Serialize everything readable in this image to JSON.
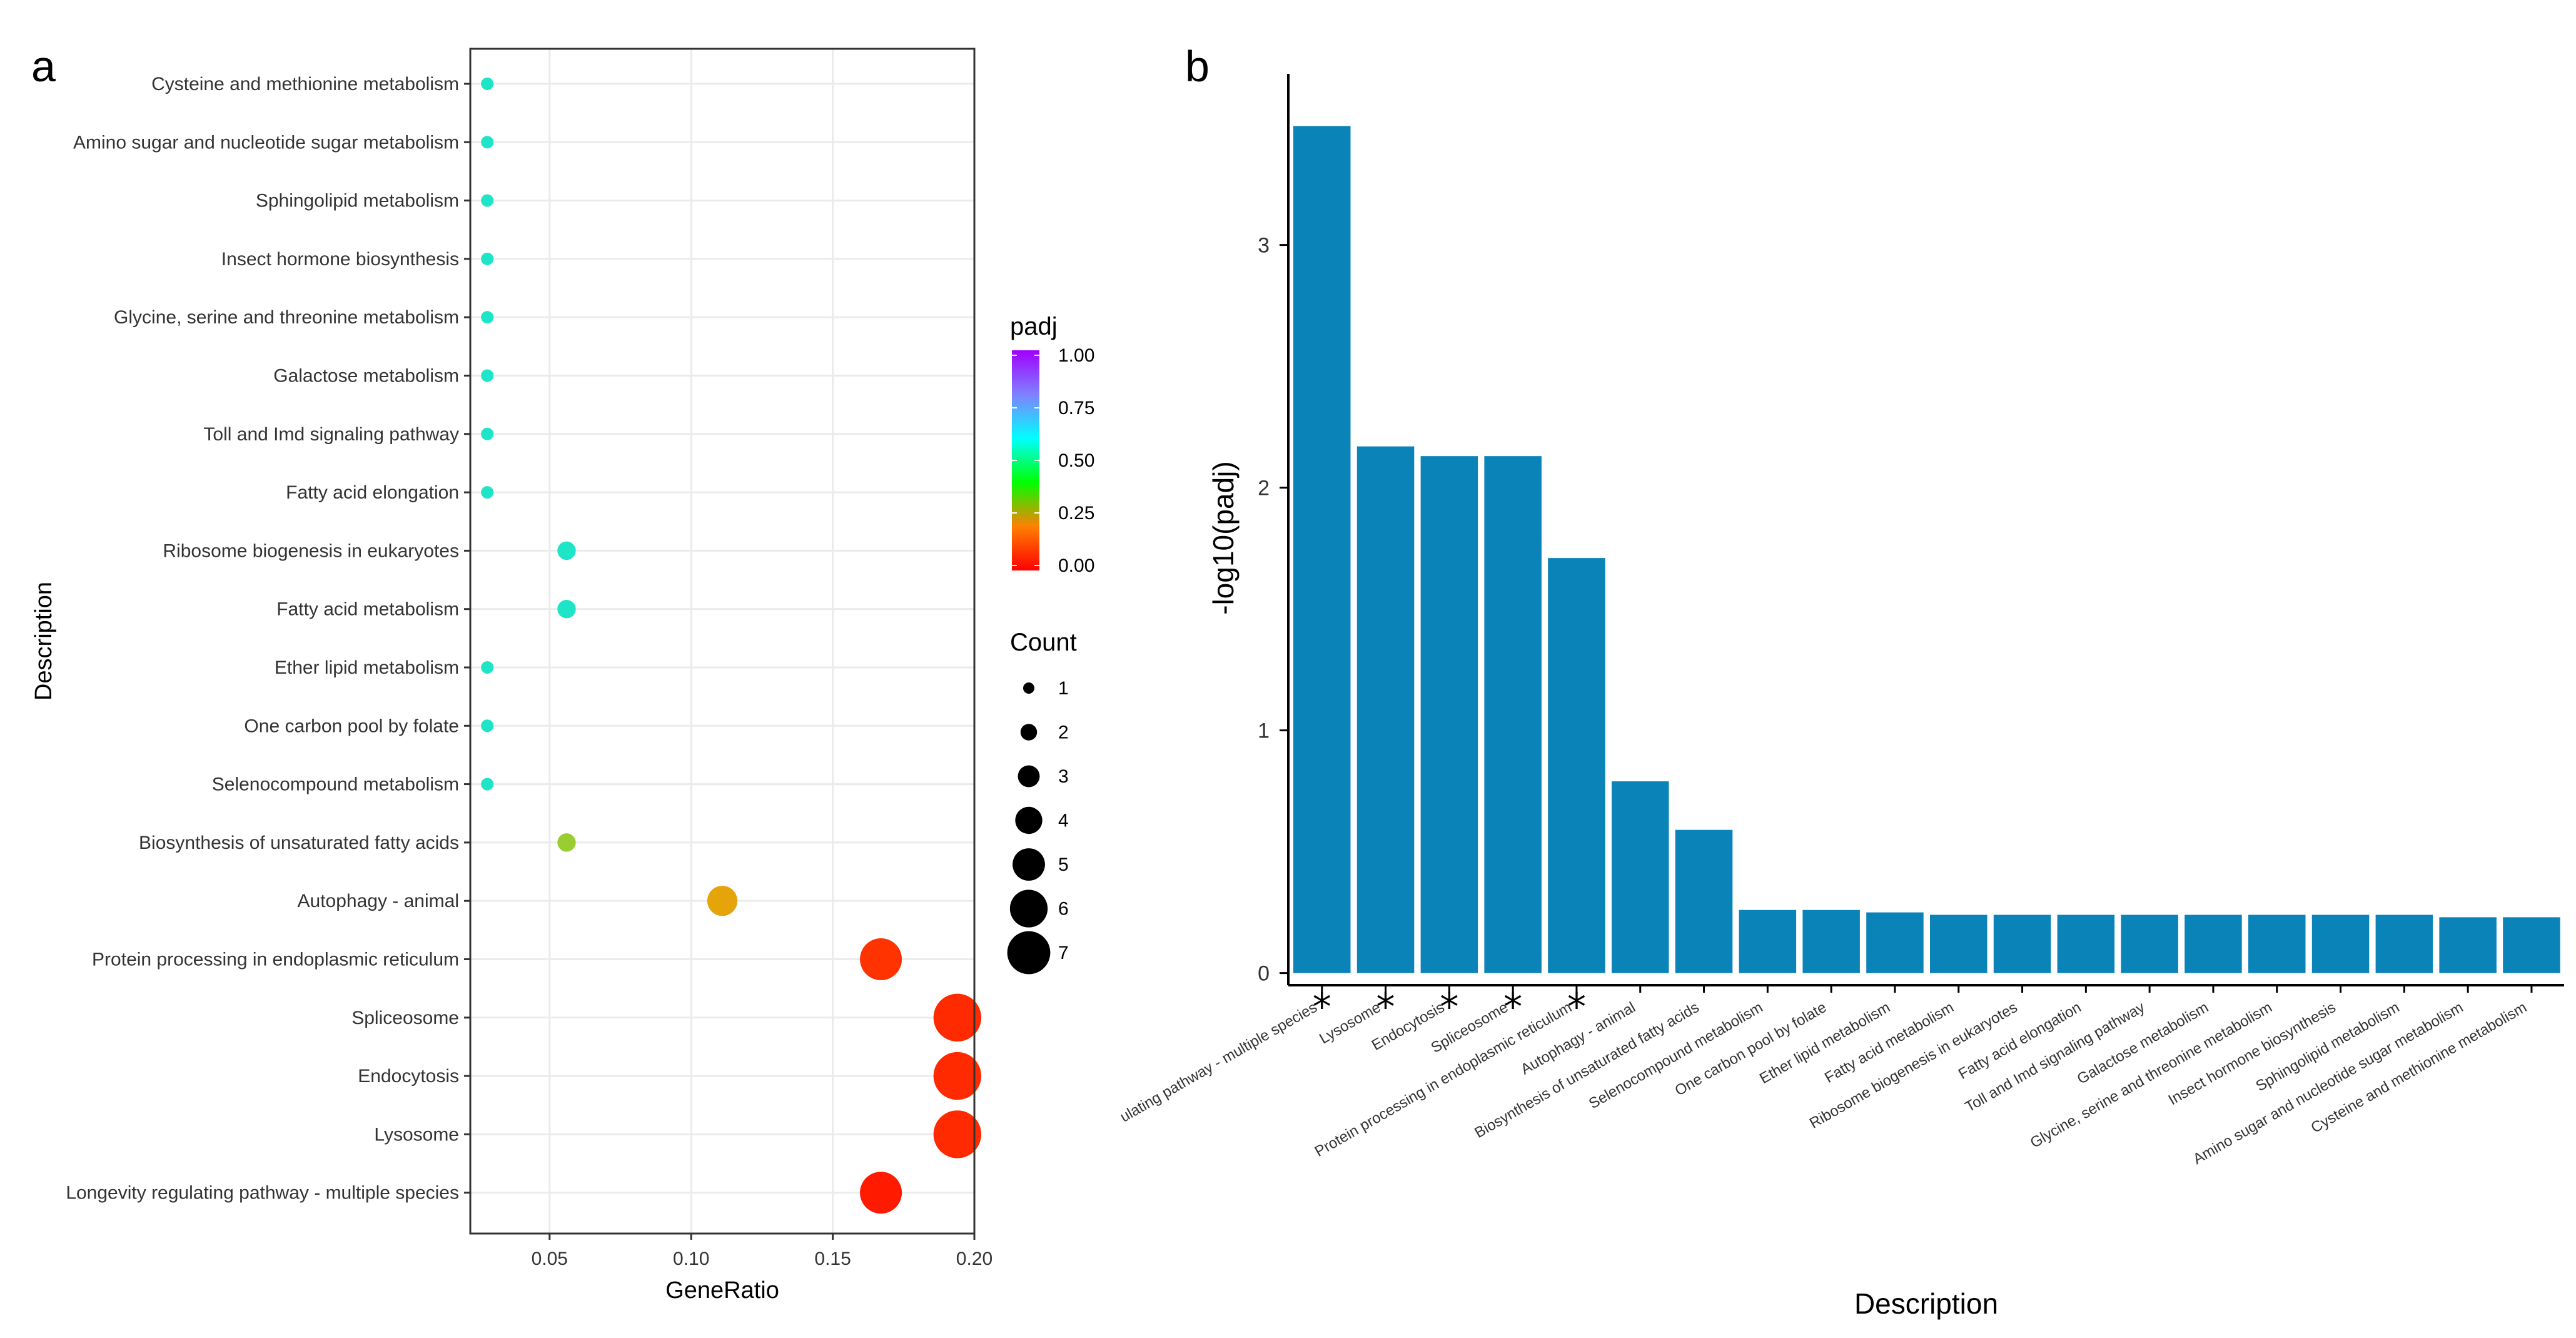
{
  "chart_data": [
    {
      "panel": "a",
      "type": "scatter",
      "title": "",
      "xlabel": "GeneRatio",
      "ylabel": "Description",
      "xlim": [
        0.022,
        0.2
      ],
      "xticks": [
        0.05,
        0.1,
        0.15,
        0.2
      ],
      "xtick_labels": [
        "0.05",
        "0.10",
        "0.15",
        "0.20"
      ],
      "grid": true,
      "color_legend": {
        "title": "padj",
        "ticks": [
          "1.00",
          "0.75",
          "0.50",
          "0.25",
          "0.00"
        ],
        "stops": [
          "#ff0000",
          "#ff8000",
          "#00ff00",
          "#00ffff",
          "#8080ff",
          "#a000ff"
        ]
      },
      "size_legend": {
        "title": "Count",
        "values": [
          1,
          2,
          3,
          4,
          5,
          6,
          7
        ],
        "labels": [
          "1",
          "2",
          "3",
          "4",
          "5",
          "6",
          "7"
        ]
      },
      "points": [
        {
          "term": "Cysteine and methionine metabolism",
          "gene_ratio": 0.028,
          "count": 1,
          "padj": 0.6,
          "color": "#1ee4c8"
        },
        {
          "term": "Amino sugar and nucleotide sugar metabolism",
          "gene_ratio": 0.028,
          "count": 1,
          "padj": 0.6,
          "color": "#1ee4c8"
        },
        {
          "term": "Sphingolipid metabolism",
          "gene_ratio": 0.028,
          "count": 1,
          "padj": 0.6,
          "color": "#1ee4c8"
        },
        {
          "term": "Insect hormone biosynthesis",
          "gene_ratio": 0.028,
          "count": 1,
          "padj": 0.6,
          "color": "#1ee4c8"
        },
        {
          "term": "Glycine, serine and threonine metabolism",
          "gene_ratio": 0.028,
          "count": 1,
          "padj": 0.6,
          "color": "#1ee4c8"
        },
        {
          "term": "Galactose metabolism",
          "gene_ratio": 0.028,
          "count": 1,
          "padj": 0.6,
          "color": "#1ee4c8"
        },
        {
          "term": "Toll and Imd signaling pathway",
          "gene_ratio": 0.028,
          "count": 1,
          "padj": 0.6,
          "color": "#1ee4c8"
        },
        {
          "term": "Fatty acid elongation",
          "gene_ratio": 0.028,
          "count": 1,
          "padj": 0.6,
          "color": "#1ee4c8"
        },
        {
          "term": "Ribosome biogenesis in eukaryotes",
          "gene_ratio": 0.056,
          "count": 2,
          "padj": 0.6,
          "color": "#1ee4c8"
        },
        {
          "term": "Fatty acid metabolism",
          "gene_ratio": 0.056,
          "count": 2,
          "padj": 0.6,
          "color": "#1ee4c8"
        },
        {
          "term": "Ether lipid metabolism",
          "gene_ratio": 0.028,
          "count": 1,
          "padj": 0.6,
          "color": "#1ee4c8"
        },
        {
          "term": "One carbon pool by folate",
          "gene_ratio": 0.028,
          "count": 1,
          "padj": 0.6,
          "color": "#1ee4c8"
        },
        {
          "term": "Selenocompound metabolism",
          "gene_ratio": 0.028,
          "count": 1,
          "padj": 0.6,
          "color": "#1ee4c8"
        },
        {
          "term": "Biosynthesis of unsaturated fatty acids",
          "gene_ratio": 0.056,
          "count": 2,
          "padj": 0.27,
          "color": "#9acd32"
        },
        {
          "term": "Autophagy - animal",
          "gene_ratio": 0.111,
          "count": 4,
          "padj": 0.17,
          "color": "#e5a50a"
        },
        {
          "term": "Protein processing in endoplasmic reticulum",
          "gene_ratio": 0.167,
          "count": 6,
          "padj": 0.02,
          "color": "#ff3300"
        },
        {
          "term": "Spliceosome",
          "gene_ratio": 0.194,
          "count": 7,
          "padj": 0.007,
          "color": "#ff2a00"
        },
        {
          "term": "Endocytosis",
          "gene_ratio": 0.194,
          "count": 7,
          "padj": 0.007,
          "color": "#ff2a00"
        },
        {
          "term": "Lysosome",
          "gene_ratio": 0.194,
          "count": 7,
          "padj": 0.007,
          "color": "#ff2a00"
        },
        {
          "term": "Longevity regulating pathway - multiple species",
          "gene_ratio": 0.167,
          "count": 6,
          "padj": 0.0003,
          "color": "#ff1a00"
        }
      ]
    },
    {
      "panel": "b",
      "type": "bar",
      "title": "",
      "xlabel": "Description",
      "ylabel": "-log10(padj)",
      "ylim": [
        -0.05,
        3.7
      ],
      "yticks": [
        0,
        1,
        2,
        3
      ],
      "ytick_labels": [
        "0",
        "1",
        "2",
        "3"
      ],
      "bar_color": "#0a84b8",
      "significance_marker": "*",
      "categories": [
        "Longevity regulating pathway - multiple species",
        "Lysosome",
        "Endocytosis",
        "Spliceosome",
        "Protein processing in endoplasmic reticulum",
        "Autophagy - animal",
        "Biosynthesis of unsaturated fatty acids",
        "Selenocompound metabolism",
        "One carbon pool by folate",
        "Ether lipid metabolism",
        "Fatty acid metabolism",
        "Ribosome biogenesis in eukaryotes",
        "Fatty acid elongation",
        "Toll and Imd signaling pathway",
        "Galactose metabolism",
        "Glycine, serine and threonine metabolism",
        "Insect hormone biosynthesis",
        "Sphingolipid metabolism",
        "Amino sugar and nucleotide sugar metabolism",
        "Cysteine and methionine metabolism"
      ],
      "category_labels": [
        "ulating pathway - multiple species",
        "Lysosome",
        "Endocytosis",
        "Spliceosome",
        "Protein processing in endoplasmic reticulum",
        "Autophagy - animal",
        "Biosynthesis of unsaturated fatty acids",
        "Selenocompound metabolism",
        "One carbon pool by folate",
        "Ether lipid metabolism",
        "Fatty acid metabolism",
        "Ribosome biogenesis in eukaryotes",
        "Fatty acid elongation",
        "Toll and Imd signaling pathway",
        "Galactose metabolism",
        "Glycine, serine and threonine metabolism",
        "Insect hormone biosynthesis",
        "Sphingolipid metabolism",
        "Amino sugar and nucleotide sugar metabolism",
        "Cysteine and methionine metabolism"
      ],
      "values": [
        3.49,
        2.17,
        2.13,
        2.13,
        1.71,
        0.79,
        0.59,
        0.26,
        0.26,
        0.25,
        0.24,
        0.24,
        0.24,
        0.24,
        0.24,
        0.24,
        0.24,
        0.24,
        0.23,
        0.23
      ],
      "significant": [
        true,
        true,
        true,
        true,
        true,
        false,
        false,
        false,
        false,
        false,
        false,
        false,
        false,
        false,
        false,
        false,
        false,
        false,
        false,
        false
      ]
    }
  ]
}
